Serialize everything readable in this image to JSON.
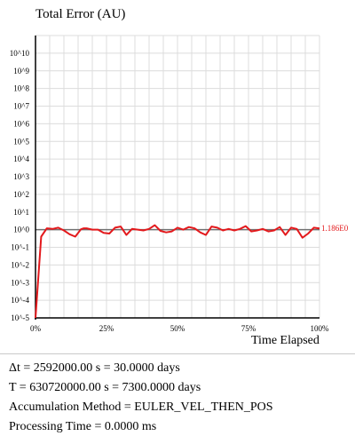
{
  "colors": {
    "series": "#e3191c",
    "grid": "#dcdcdc",
    "axis": "#000000",
    "zero_line": "#707070",
    "text": "#000000"
  },
  "chart_data": {
    "type": "line",
    "title": "Total Error (AU)",
    "xlabel": "Time Elapsed",
    "ylabel": "",
    "y_scale": "log10",
    "ylim": [
      1e-05,
      100000000000.0
    ],
    "xlim": [
      0,
      100
    ],
    "y_tick_labels": [
      "10^-5",
      "10^-4",
      "10^-3",
      "10^-2",
      "10^-1",
      "10^0",
      "10^1",
      "10^2",
      "10^3",
      "10^4",
      "10^5",
      "10^6",
      "10^7",
      "10^8",
      "10^9",
      "10^10"
    ],
    "x_tick_labels": [
      "0%",
      "25%",
      "50%",
      "75%",
      "100%"
    ],
    "grid": true,
    "end_label": "1.186E0",
    "series": [
      {
        "x": [
          0,
          2,
          4,
          6,
          8,
          10,
          12,
          14,
          16,
          17,
          18,
          20,
          22,
          24,
          26,
          28,
          30,
          32,
          34,
          36,
          38,
          40,
          42,
          44,
          46,
          48,
          50,
          52,
          54,
          56,
          58,
          60,
          62,
          64,
          66,
          68,
          70,
          72,
          74,
          76,
          78,
          80,
          82,
          84,
          86,
          88,
          90,
          92,
          94,
          96,
          98,
          100
        ],
        "y": [
          1e-05,
          0.4,
          1.2,
          1.1,
          1.3,
          0.9,
          0.55,
          0.4,
          1.05,
          1.2,
          1.2,
          1.0,
          1.0,
          0.65,
          0.6,
          1.3,
          1.5,
          0.5,
          1.1,
          1.0,
          0.9,
          1.1,
          1.8,
          0.85,
          0.7,
          0.8,
          1.3,
          1.0,
          1.4,
          1.2,
          0.7,
          0.5,
          1.5,
          1.3,
          0.9,
          1.1,
          0.9,
          1.1,
          1.6,
          0.8,
          0.9,
          1.1,
          0.8,
          0.9,
          1.4,
          0.5,
          1.3,
          1.1,
          0.35,
          0.6,
          1.3,
          1.186
        ]
      }
    ]
  },
  "info": [
    "Δt = 2592000.00 s = 30.0000 days",
    "T = 630720000.00 s = 7300.0000 days",
    "Accumulation Method = EULER_VEL_THEN_POS",
    "Processing Time = 0.0000 ms"
  ]
}
